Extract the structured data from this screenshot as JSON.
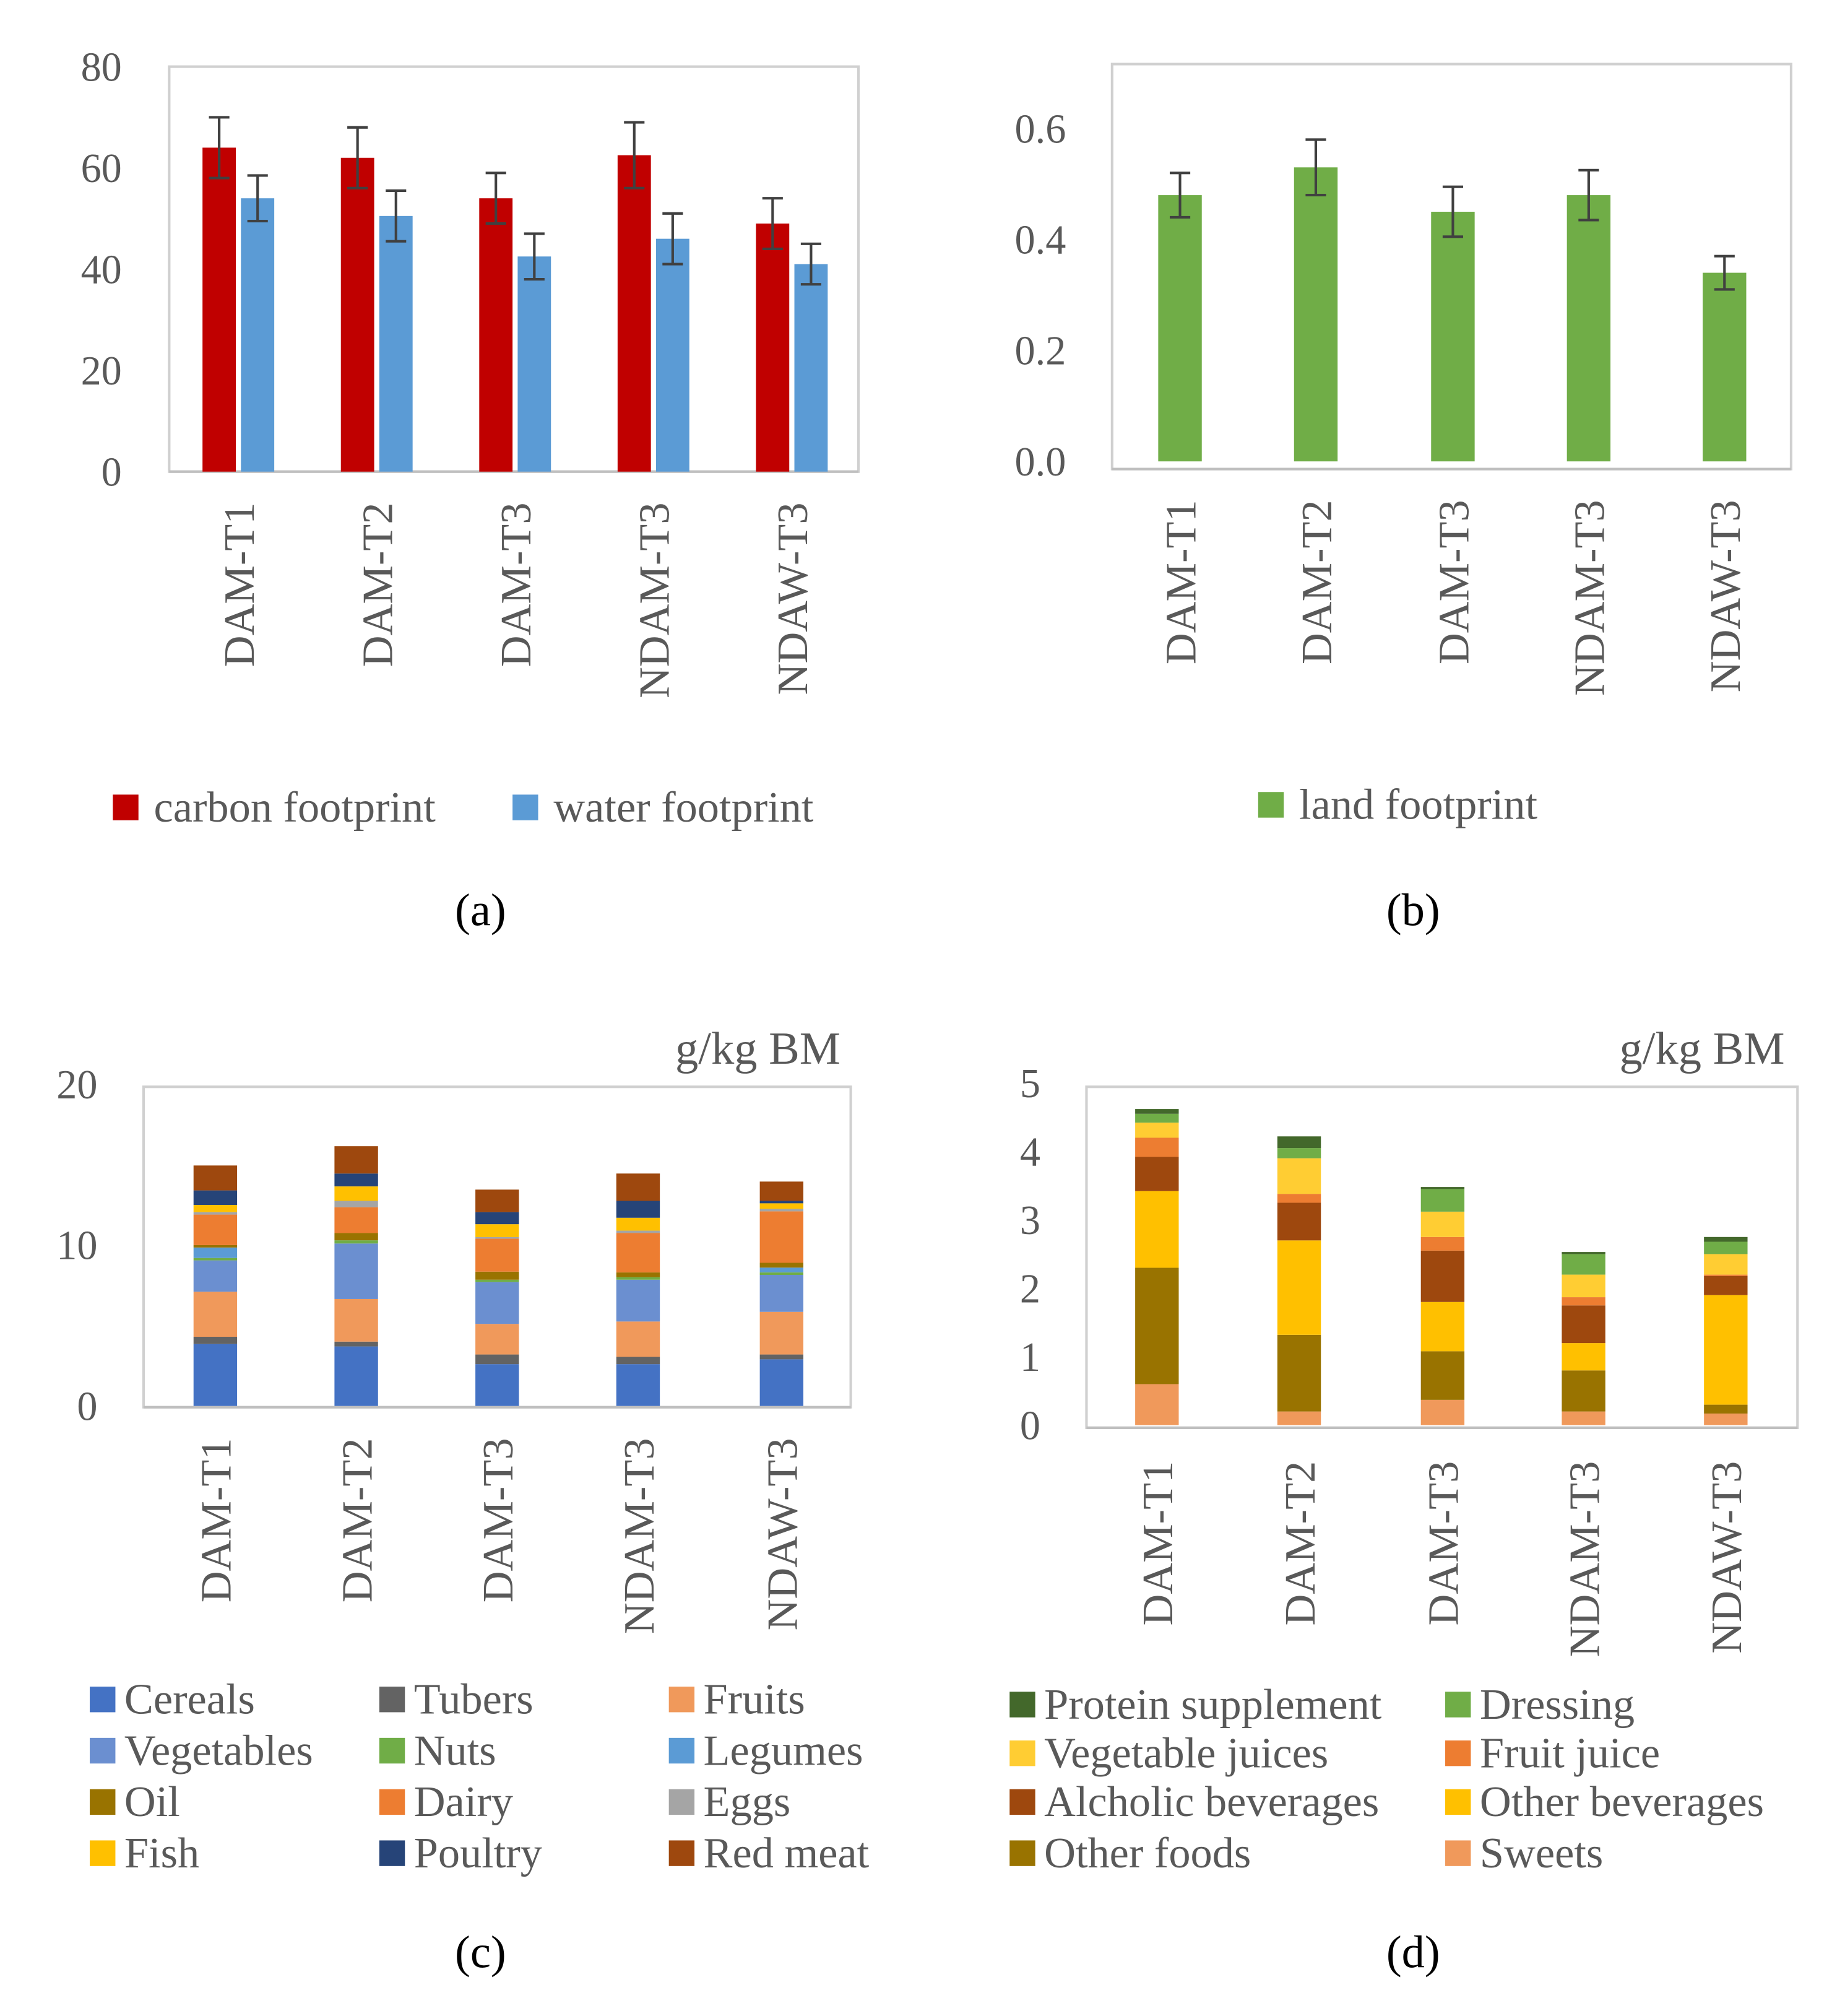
{
  "chart_data": [
    {
      "id": "a",
      "type": "bar",
      "caption": "(a)",
      "categories": [
        "DAM-T1",
        "DAM-T2",
        "DAM-T3",
        "NDAM-T3",
        "NDAW-T3"
      ],
      "ylim": [
        0,
        80
      ],
      "yticks": [
        "0",
        "20",
        "40",
        "60",
        "80"
      ],
      "ytick_values": [
        0,
        20,
        40,
        60,
        80
      ],
      "legend_position": "bottom",
      "series": [
        {
          "name": "carbon footprint",
          "color": "#C00000",
          "values": [
            64,
            62,
            54,
            62.5,
            49
          ],
          "errors": [
            6,
            6,
            5,
            6.5,
            5
          ]
        },
        {
          "name": "water footprint",
          "color": "#5B9BD5",
          "values": [
            54,
            50.5,
            42.5,
            46,
            41
          ],
          "errors": [
            4.5,
            5,
            4.5,
            5,
            4
          ]
        }
      ]
    },
    {
      "id": "b",
      "type": "bar",
      "caption": "(b)",
      "categories": [
        "DAM-T1",
        "DAM-T2",
        "DAM-T3",
        "NDAM-T3",
        "NDAW-T3"
      ],
      "ylim": [
        0,
        0.7
      ],
      "yticks": [
        "0.0",
        "0.2",
        "0.4",
        "0.6"
      ],
      "ytick_values": [
        0,
        0.2,
        0.4,
        0.6
      ],
      "legend_position": "bottom",
      "series": [
        {
          "name": "land footprint",
          "color": "#70AD47",
          "values": [
            0.48,
            0.53,
            0.45,
            0.48,
            0.34
          ],
          "errors": [
            0.04,
            0.05,
            0.045,
            0.045,
            0.03
          ]
        }
      ]
    },
    {
      "id": "c",
      "type": "bar",
      "stacked": true,
      "caption": "(c)",
      "unit_label": "g/kg BM",
      "categories": [
        "DAM-T1",
        "DAM-T2",
        "DAM-T3",
        "NDAM-T3",
        "NDAW-T3"
      ],
      "ylim": [
        0,
        20
      ],
      "yticks": [
        "0",
        "10",
        "20"
      ],
      "ytick_values": [
        0,
        10,
        20
      ],
      "legend_position": "bottom",
      "series": [
        {
          "name": "Cereals",
          "color": "#4472C4",
          "values": [
            3.85,
            3.7,
            2.6,
            2.6,
            2.9
          ]
        },
        {
          "name": "Tubers",
          "color": "#636363",
          "values": [
            0.45,
            0.3,
            0.6,
            0.45,
            0.3
          ]
        },
        {
          "name": "Fruits",
          "color": "#F0995B",
          "values": [
            2.8,
            2.65,
            1.9,
            2.2,
            2.65
          ]
        },
        {
          "name": "Vegetables",
          "color": "#6B8FD0",
          "values": [
            1.95,
            3.45,
            2.6,
            2.6,
            2.3
          ]
        },
        {
          "name": "Nuts",
          "color": "#70AD47",
          "values": [
            0.15,
            0.2,
            0.15,
            0.15,
            0.15
          ]
        },
        {
          "name": "Legumes",
          "color": "#5B9BD5",
          "values": [
            0.65,
            0.0,
            0.0,
            0.0,
            0.3
          ]
        },
        {
          "name": "Oil",
          "color": "#997300",
          "values": [
            0.15,
            0.45,
            0.5,
            0.3,
            0.3
          ]
        },
        {
          "name": "Dairy",
          "color": "#ED7D31",
          "values": [
            1.9,
            1.6,
            2.05,
            2.45,
            3.2
          ]
        },
        {
          "name": "Eggs",
          "color": "#A5A5A5",
          "values": [
            0.15,
            0.4,
            0.1,
            0.15,
            0.15
          ]
        },
        {
          "name": "Fish",
          "color": "#FFC000",
          "values": [
            0.45,
            0.9,
            0.8,
            0.8,
            0.35
          ]
        },
        {
          "name": "Poultry",
          "color": "#264478",
          "values": [
            0.9,
            0.8,
            0.75,
            1.05,
            0.15
          ]
        },
        {
          "name": "Red meat",
          "color": "#9E480E",
          "values": [
            1.55,
            1.7,
            1.4,
            1.7,
            1.2
          ]
        }
      ]
    },
    {
      "id": "d",
      "type": "bar",
      "stacked": true,
      "caption": "(d)",
      "unit_label": "g/kg BM",
      "categories": [
        "DAM-T1",
        "DAM-T2",
        "DAM-T3",
        "NDAM-T3",
        "NDAW-T3"
      ],
      "ylim": [
        0,
        5
      ],
      "yticks": [
        "0",
        "1",
        "2",
        "3",
        "4",
        "5"
      ],
      "ytick_values": [
        0,
        1,
        2,
        3,
        4,
        5
      ],
      "legend_position": "bottom",
      "series": [
        {
          "name": "Protein supplement",
          "color": "#43682B",
          "values": [
            0.07,
            0.17,
            0.03,
            0.03,
            0.07
          ]
        },
        {
          "name": "Dressing",
          "color": "#70AD47",
          "values": [
            0.13,
            0.15,
            0.33,
            0.3,
            0.18
          ]
        },
        {
          "name": "Vegetable juices",
          "color": "#FFCD33",
          "values": [
            0.22,
            0.52,
            0.37,
            0.33,
            0.3
          ]
        },
        {
          "name": "Fruit juice",
          "color": "#ED7D31",
          "values": [
            0.28,
            0.13,
            0.2,
            0.12,
            0.02
          ]
        },
        {
          "name": "Alcholic beverages",
          "color": "#9E480E",
          "values": [
            0.5,
            0.55,
            0.75,
            0.55,
            0.28
          ]
        },
        {
          "name": "Other beverages",
          "color": "#FFC000",
          "values": [
            1.12,
            1.38,
            0.72,
            0.4,
            1.6
          ]
        },
        {
          "name": "Other foods",
          "color": "#997300",
          "values": [
            1.7,
            1.12,
            0.71,
            0.6,
            0.13
          ]
        },
        {
          "name": "Sweets",
          "color": "#F0995B",
          "values": [
            0.6,
            0.2,
            0.37,
            0.2,
            0.17
          ]
        }
      ]
    }
  ]
}
